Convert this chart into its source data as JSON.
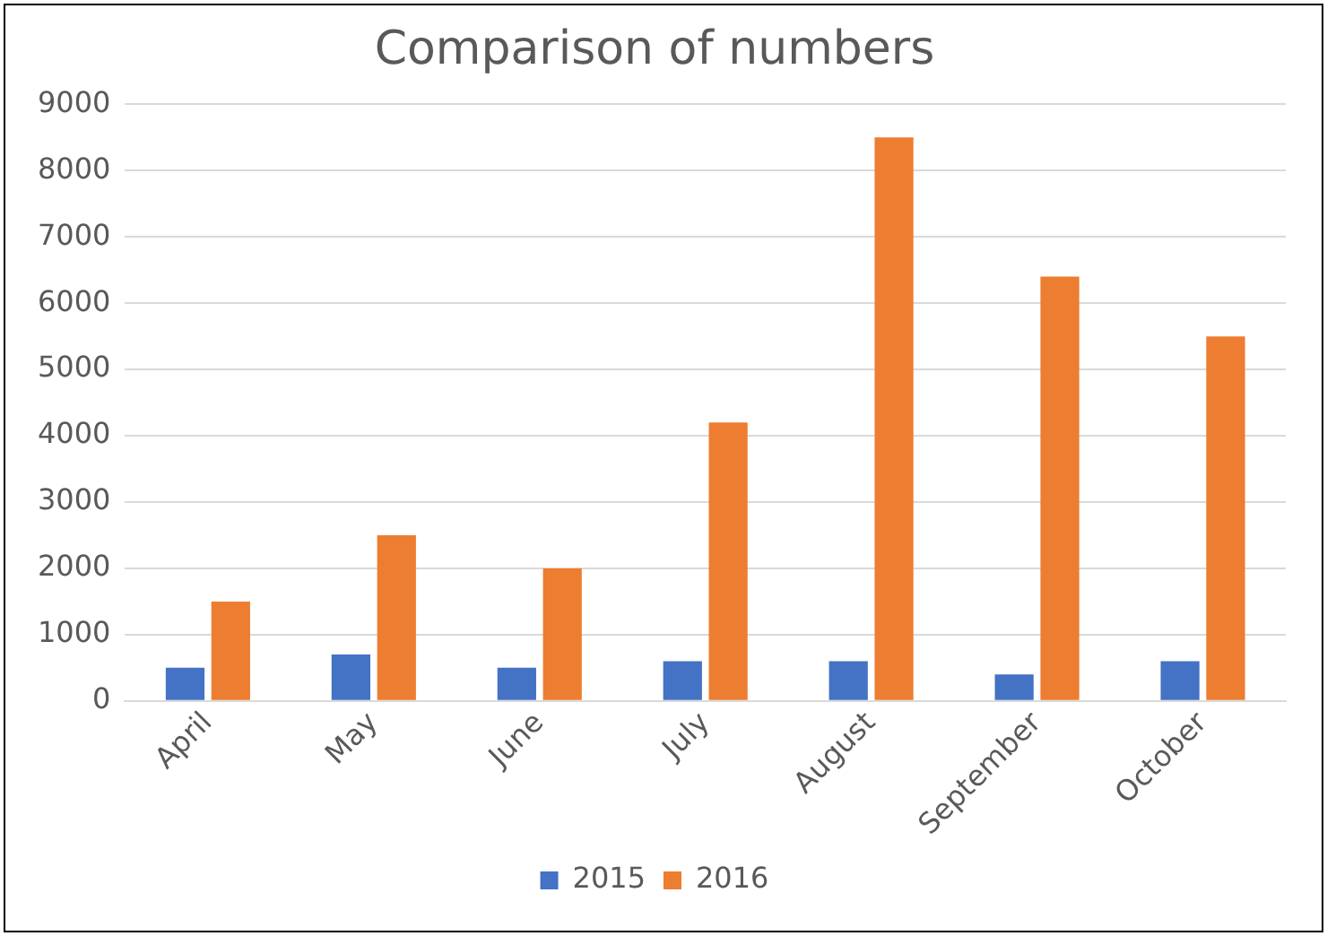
{
  "chart_data": {
    "type": "bar",
    "title": "Comparison of numbers",
    "categories": [
      "April",
      "May",
      "June",
      "July",
      "August",
      "September",
      "October"
    ],
    "series": [
      {
        "name": "2015",
        "color": "#4472c4",
        "values": [
          500,
          700,
          500,
          600,
          600,
          400,
          600
        ]
      },
      {
        "name": "2016",
        "color": "#ed7d31",
        "values": [
          1500,
          2500,
          2000,
          4200,
          8500,
          6400,
          5500
        ]
      }
    ],
    "ylim": [
      0,
      9000
    ],
    "yticks": [
      0,
      1000,
      2000,
      3000,
      4000,
      5000,
      6000,
      7000,
      8000,
      9000
    ],
    "grid": "y",
    "legend": "bottom"
  }
}
